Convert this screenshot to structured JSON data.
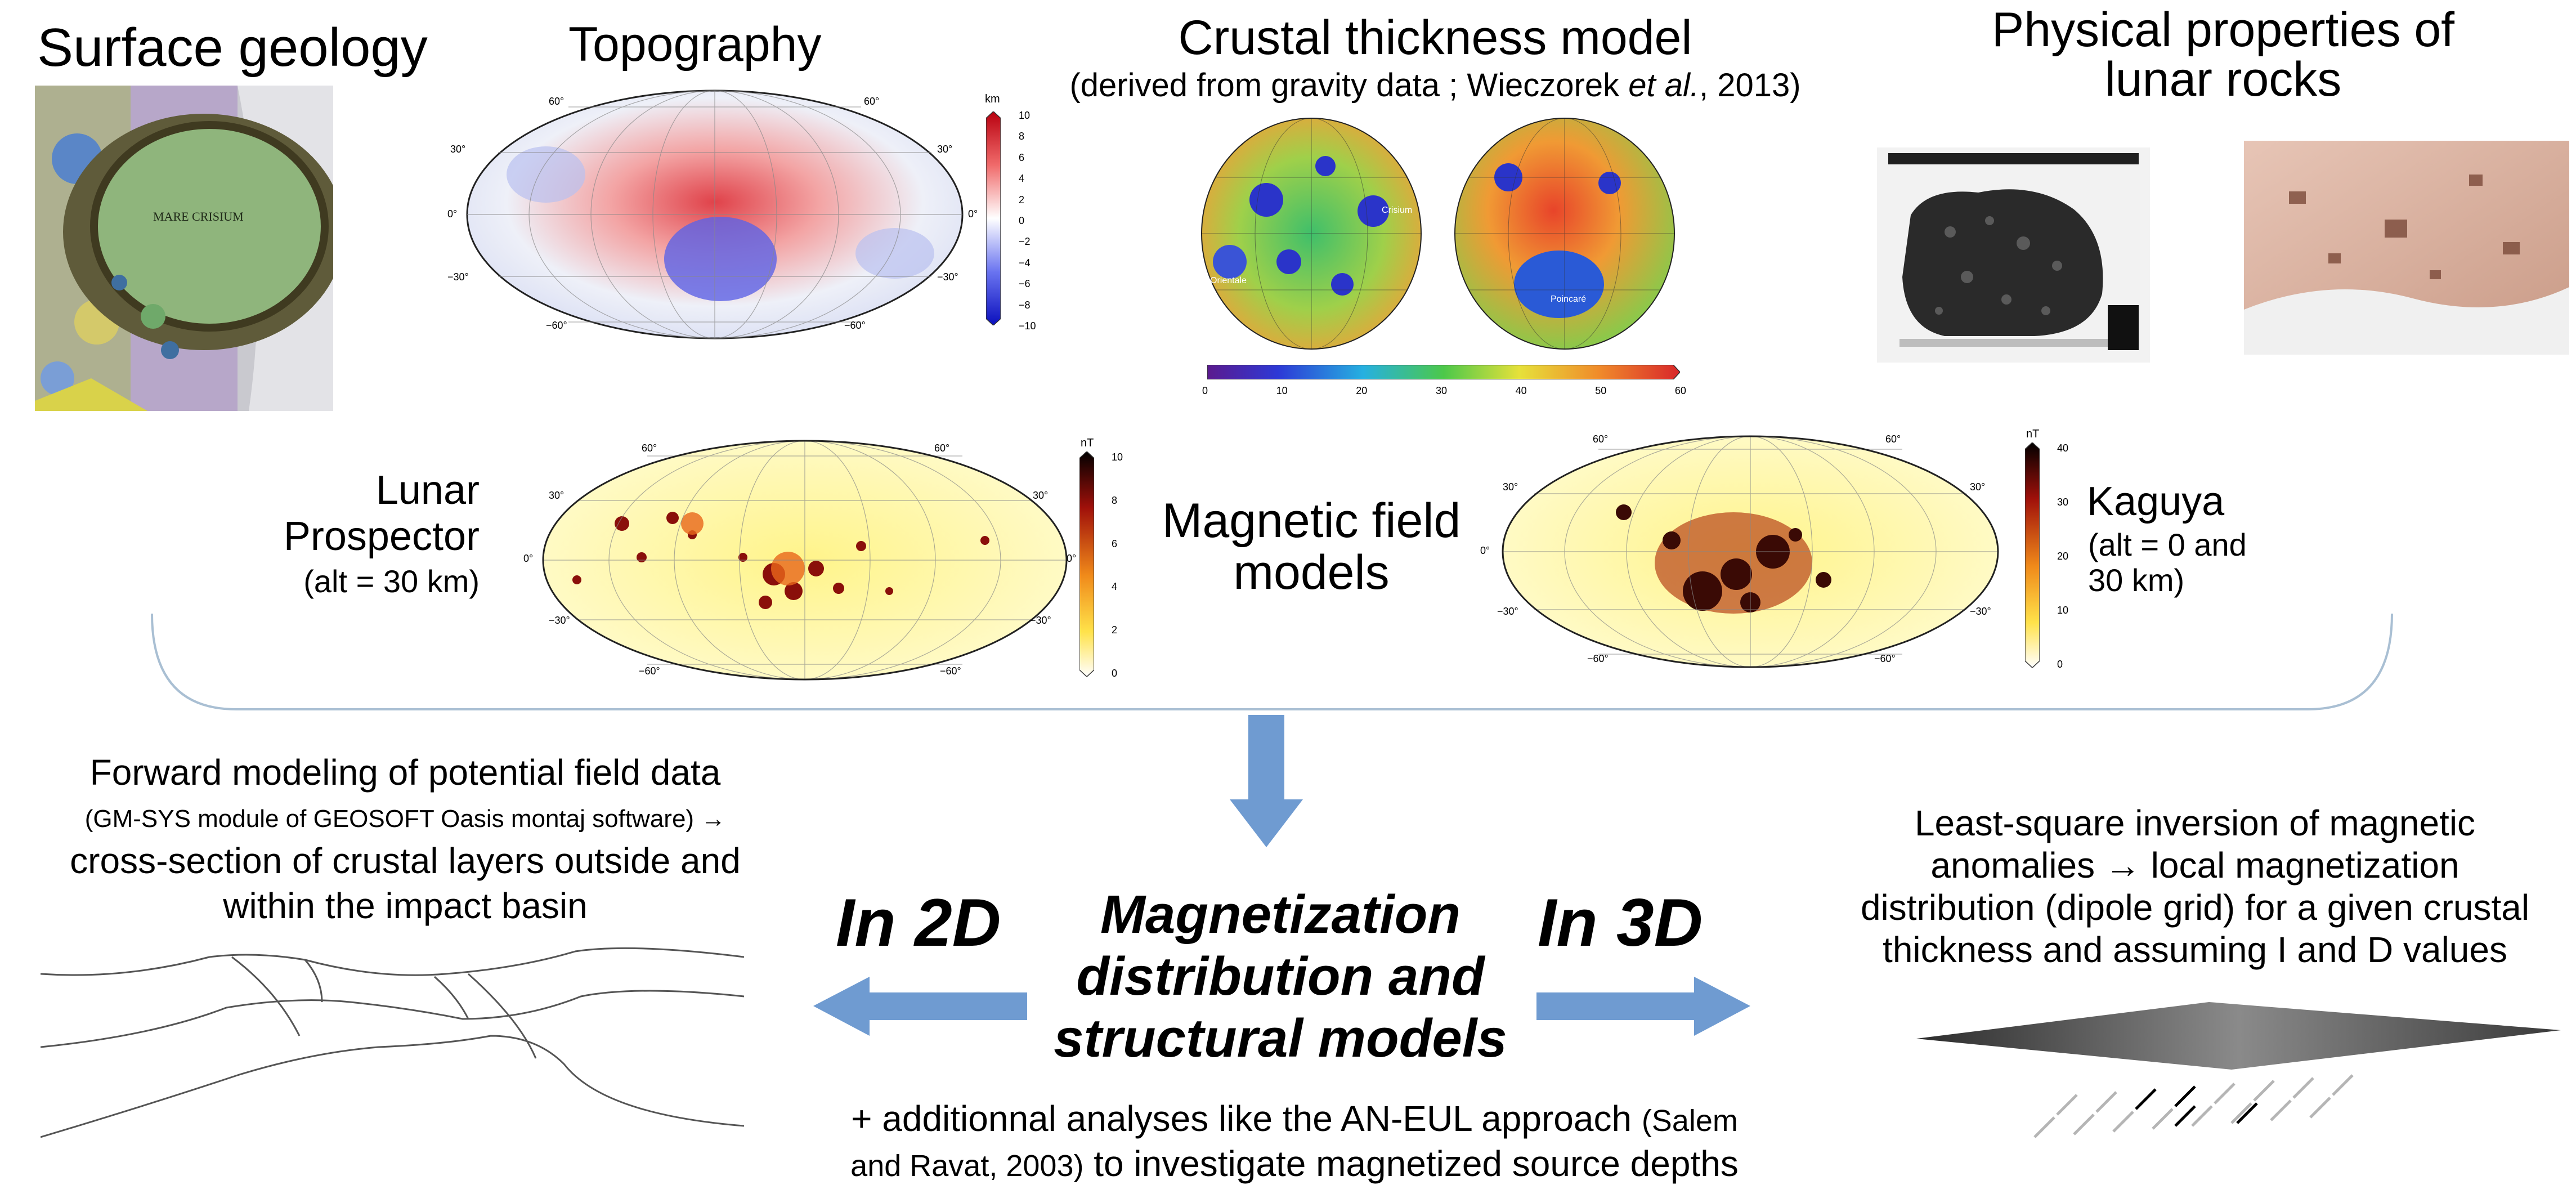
{
  "top": {
    "surface_geology": "Surface geology",
    "mare_crisium_label": "MARE CRISIUM",
    "topography": "Topography",
    "topo_unit": "km",
    "topo_scale": [
      "10",
      "8",
      "6",
      "4",
      "2",
      "0",
      "−2",
      "−4",
      "−6",
      "−8",
      "−10"
    ],
    "crustal_title": "Crustal thickness model",
    "crustal_sub_a": "(derived from gravity data ; Wieczorek ",
    "crustal_sub_italic": "et al.",
    "crustal_sub_b": ", 2013)",
    "crustal_scale": [
      "0",
      "10",
      "20",
      "30",
      "40",
      "50",
      "60"
    ],
    "crustal_basins": [
      "Crisium",
      "Orientale",
      "Poincaré"
    ],
    "physical_title_1": "Physical properties of",
    "physical_title_2": "lunar rocks"
  },
  "magnetic": {
    "lp_label_1": "Lunar",
    "lp_label_2": "Prospector",
    "lp_alt": "(alt = 30 km)",
    "lp_unit": "nT",
    "lp_scale": [
      "10",
      "8",
      "6",
      "4",
      "2",
      "0"
    ],
    "center_1": "Magnetic field",
    "center_2": "models",
    "kaguya_label": "Kaguya",
    "kaguya_alt_1": "(alt = 0 and",
    "kaguya_alt_2": "30 km)",
    "kaguya_unit": "nT",
    "kaguya_scale": [
      "40",
      "30",
      "20",
      "10",
      "0"
    ]
  },
  "map_ticks": {
    "lat_60": "60°",
    "lat_30": "30°",
    "lat_0": "0°",
    "lat_m30": "−30°",
    "lat_m60": "−60°"
  },
  "forward": {
    "line1": "Forward modeling of potential field data",
    "line2": "(GM-SYS module of GEOSOFT Oasis montaj software)  →",
    "line3": "cross-section of crustal layers outside and",
    "line4": "within the impact basin"
  },
  "center": {
    "in2d": "In 2D",
    "in3d": "In 3D",
    "main1": "Magnetization",
    "main2": "distribution and",
    "main3": "structural models",
    "add1_a": "+ additionnal analyses like the AN-EUL approach ",
    "add1_b": "(Salem",
    "add2_a": "and Ravat, 2003)",
    "add2_b": " to investigate magnetized source depths"
  },
  "inversion": {
    "line1": "Least-square inversion of magnetic",
    "line2": "anomalies → local magnetization",
    "line3": "distribution (dipole grid) for a given crustal",
    "line4": "thickness and assuming I and D values"
  },
  "colors": {
    "arrow": "#6f9bd1",
    "bracket": "#a9bfd3"
  }
}
